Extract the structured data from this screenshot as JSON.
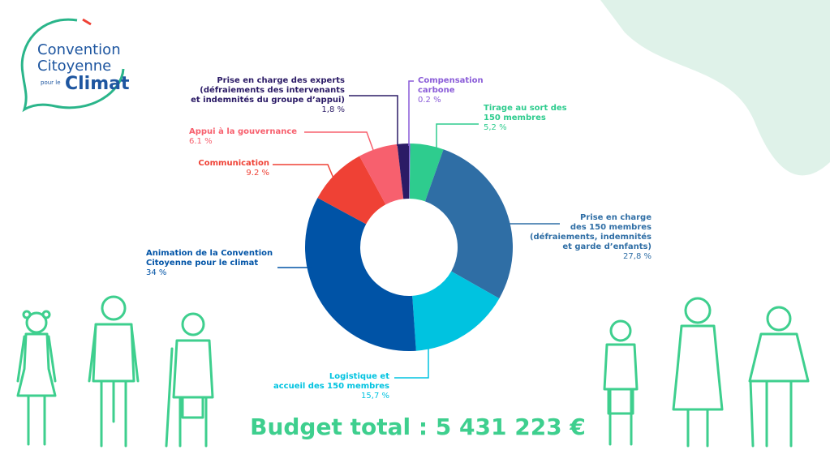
{
  "logo": {
    "line1": "Convention",
    "line2": "Citoyenne",
    "small": "pour le",
    "big": "Climat"
  },
  "chart_data": {
    "type": "donut",
    "categories": [
      "Compensation\ncarbone",
      "Tirage au sort des\n150 membres",
      "Prise en charge\ndes 150 membres\n(défraiements, indemnités\net garde d’enfants)",
      "Logistique et\naccueil des 150 membres",
      "Animation de la Convention\nCitoyenne pour le climat",
      "Communication",
      "Appui à la gouvernance",
      "Prise en charge des experts\n(défraiements des intervenants\net indemnités du groupe d’appui)"
    ],
    "values": [
      0.2,
      5.2,
      27.8,
      15.7,
      34,
      9.2,
      6.1,
      1.8
    ],
    "value_labels": [
      "0.2 %",
      "5,2 %",
      "27,8 %",
      "15,7 %",
      "34 %",
      "9.2 %",
      "6.1 %",
      "1,8 %"
    ],
    "colors": [
      "#8a5cd8",
      "#2ecc8e",
      "#2f6ea5",
      "#00c3e0",
      "#0053a6",
      "#ef4135",
      "#f7606e",
      "#2b1b66"
    ],
    "total": "Budget total : 5 431 223 €"
  }
}
